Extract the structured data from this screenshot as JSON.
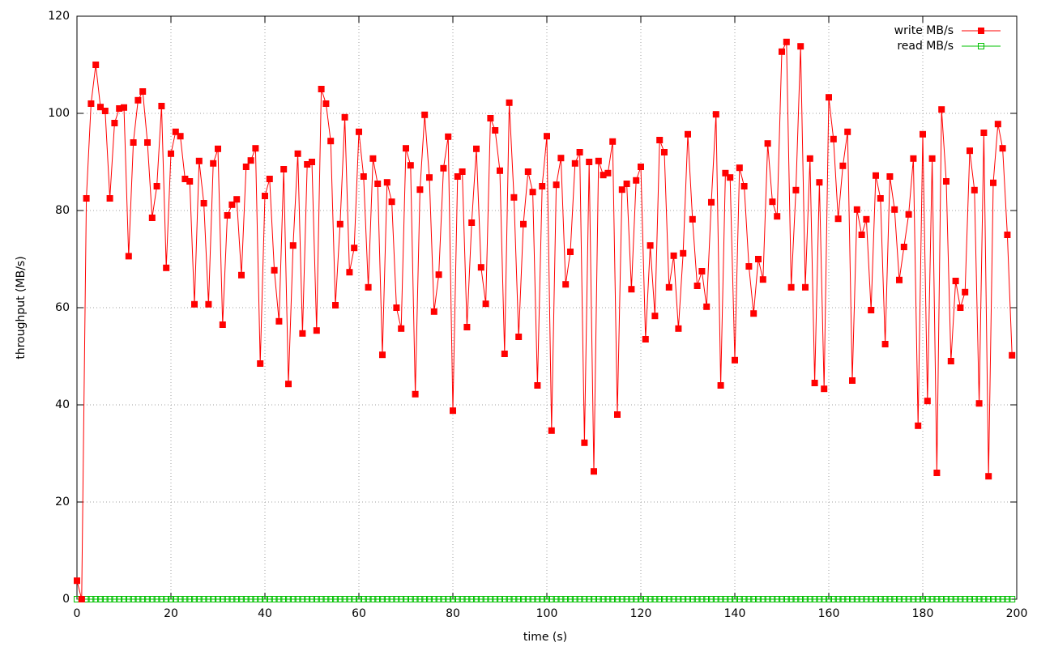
{
  "chart_data": {
    "type": "line",
    "xlabel": "time (s)",
    "ylabel": "throughput (MB/s)",
    "x": [
      0,
      1,
      2,
      3,
      4,
      5,
      6,
      7,
      8,
      9,
      10,
      11,
      12,
      13,
      14,
      15,
      16,
      17,
      18,
      19,
      20,
      21,
      22,
      23,
      24,
      25,
      26,
      27,
      28,
      29,
      30,
      31,
      32,
      33,
      34,
      35,
      36,
      37,
      38,
      39,
      40,
      41,
      42,
      43,
      44,
      45,
      46,
      47,
      48,
      49,
      50,
      51,
      52,
      53,
      54,
      55,
      56,
      57,
      58,
      59,
      60,
      61,
      62,
      63,
      64,
      65,
      66,
      67,
      68,
      69,
      70,
      71,
      72,
      73,
      74,
      75,
      76,
      77,
      78,
      79,
      80,
      81,
      82,
      83,
      84,
      85,
      86,
      87,
      88,
      89,
      90,
      91,
      92,
      93,
      94,
      95,
      96,
      97,
      98,
      99,
      100,
      101,
      102,
      103,
      104,
      105,
      106,
      107,
      108,
      109,
      110,
      111,
      112,
      113,
      114,
      115,
      116,
      117,
      118,
      119,
      120,
      121,
      122,
      123,
      124,
      125,
      126,
      127,
      128,
      129,
      130,
      131,
      132,
      133,
      134,
      135,
      136,
      137,
      138,
      139,
      140,
      141,
      142,
      143,
      144,
      145,
      146,
      147,
      148,
      149,
      150,
      151,
      152,
      153,
      154,
      155,
      156,
      157,
      158,
      159,
      160,
      161,
      162,
      163,
      164,
      165,
      166,
      167,
      168,
      169,
      170,
      171,
      172,
      173,
      174,
      175,
      176,
      177,
      178,
      179,
      180,
      181,
      182,
      183,
      184,
      185,
      186,
      187,
      188,
      189,
      190,
      191,
      192,
      193,
      194,
      195,
      196,
      197,
      198,
      199
    ],
    "series": [
      {
        "name": "write MB/s",
        "color": "#ff0000",
        "marker": "filled-square",
        "values": [
          3.8,
          0,
          82.5,
          102,
          110,
          101.3,
          100.5,
          82.5,
          98,
          101,
          101.2,
          70.6,
          94,
          102.7,
          104.5,
          94,
          78.5,
          85,
          101.5,
          68.2,
          91.7,
          96.2,
          95.3,
          86.5,
          86,
          60.7,
          90.2,
          81.5,
          60.7,
          89.7,
          92.7,
          56.5,
          79,
          81.2,
          82.3,
          66.7,
          89,
          90.3,
          92.8,
          48.5,
          83,
          86.5,
          67.7,
          57.2,
          88.5,
          44.3,
          72.8,
          91.7,
          54.7,
          89.5,
          90,
          55.3,
          105,
          102,
          94.3,
          60.5,
          77.2,
          99.2,
          67.3,
          72.3,
          96.2,
          87,
          64.2,
          90.7,
          85.5,
          50.3,
          85.8,
          81.8,
          60,
          55.7,
          92.8,
          89.3,
          42.2,
          84.3,
          99.7,
          86.8,
          59.2,
          66.8,
          88.7,
          95.2,
          38.8,
          87,
          88,
          56,
          77.5,
          92.7,
          68.3,
          60.8,
          99,
          96.5,
          88.2,
          50.5,
          102.2,
          82.7,
          54,
          77.2,
          88,
          83.8,
          44,
          85,
          95.3,
          34.7,
          85.3,
          90.8,
          64.8,
          71.5,
          89.7,
          92,
          32.2,
          90,
          26.3,
          90.2,
          87.3,
          87.7,
          94.2,
          38,
          84.3,
          85.5,
          63.8,
          86.2,
          89,
          53.5,
          72.8,
          58.3,
          94.5,
          92,
          64.2,
          70.7,
          55.7,
          71.2,
          95.7,
          78.2,
          64.5,
          67.5,
          60.2,
          81.7,
          99.8,
          44,
          87.7,
          86.8,
          49.2,
          88.8,
          85,
          68.5,
          58.8,
          70,
          65.8,
          93.8,
          81.8,
          78.8,
          112.7,
          114.7,
          64.2,
          84.2,
          113.8,
          64.2,
          90.7,
          44.5,
          85.8,
          43.3,
          103.3,
          94.7,
          78.3,
          89.2,
          96.2,
          45,
          80.2,
          75,
          78.2,
          59.5,
          87.2,
          82.5,
          52.5,
          87,
          80.2,
          65.7,
          72.5,
          79.2,
          90.7,
          35.7,
          95.7,
          40.8,
          90.7,
          26,
          100.8,
          86,
          49,
          65.5,
          60,
          63.2,
          92.3,
          84.2,
          40.3,
          96,
          25.3,
          85.7,
          97.8,
          92.8,
          75,
          50.2
        ]
      },
      {
        "name": "read MB/s",
        "color": "#00c000",
        "marker": "open-square",
        "values": [
          0,
          0,
          0,
          0,
          0,
          0,
          0,
          0,
          0,
          0,
          0,
          0,
          0,
          0,
          0,
          0,
          0,
          0,
          0,
          0,
          0,
          0,
          0,
          0,
          0,
          0,
          0,
          0,
          0,
          0,
          0,
          0,
          0,
          0,
          0,
          0,
          0,
          0,
          0,
          0,
          0,
          0,
          0,
          0,
          0,
          0,
          0,
          0,
          0,
          0,
          0,
          0,
          0,
          0,
          0,
          0,
          0,
          0,
          0,
          0,
          0,
          0,
          0,
          0,
          0,
          0,
          0,
          0,
          0,
          0,
          0,
          0,
          0,
          0,
          0,
          0,
          0,
          0,
          0,
          0,
          0,
          0,
          0,
          0,
          0,
          0,
          0,
          0,
          0,
          0,
          0,
          0,
          0,
          0,
          0,
          0,
          0,
          0,
          0,
          0,
          0,
          0,
          0,
          0,
          0,
          0,
          0,
          0,
          0,
          0,
          0,
          0,
          0,
          0,
          0,
          0,
          0,
          0,
          0,
          0,
          0,
          0,
          0,
          0,
          0,
          0,
          0,
          0,
          0,
          0,
          0,
          0,
          0,
          0,
          0,
          0,
          0,
          0,
          0,
          0,
          0,
          0,
          0,
          0,
          0,
          0,
          0,
          0,
          0,
          0,
          0,
          0,
          0,
          0,
          0,
          0,
          0,
          0,
          0,
          0,
          0,
          0,
          0,
          0,
          0,
          0,
          0,
          0,
          0,
          0,
          0,
          0,
          0,
          0,
          0,
          0,
          0,
          0,
          0,
          0,
          0,
          0,
          0,
          0,
          0,
          0,
          0,
          0,
          0,
          0,
          0,
          0,
          0,
          0,
          0,
          0,
          0,
          0,
          0,
          0
        ]
      }
    ],
    "xlim": [
      0,
      200
    ],
    "ylim": [
      0,
      120
    ],
    "xticks": [
      0,
      20,
      40,
      60,
      80,
      100,
      120,
      140,
      160,
      180,
      200
    ],
    "yticks": [
      0,
      20,
      40,
      60,
      80,
      100,
      120
    ],
    "grid": true,
    "legend": "upper-right"
  }
}
